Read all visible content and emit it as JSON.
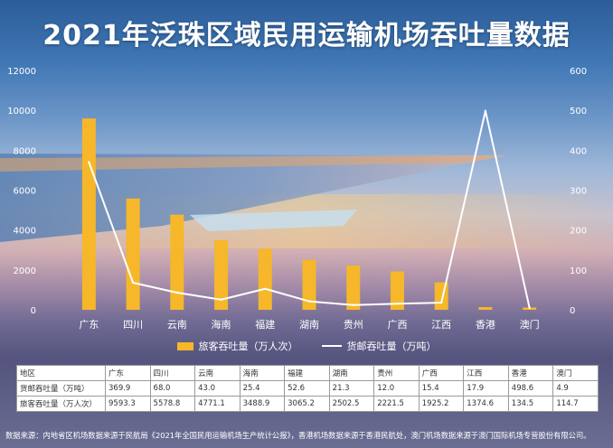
{
  "title": "2021年泛珠区域民用运输机场吞吐量数据",
  "legend": {
    "bar_label": "旅客吞吐量（万人次）",
    "line_label": "货邮吞吐量（万吨）"
  },
  "colors": {
    "bar": "#f6b72a",
    "line": "#ffffff"
  },
  "chart_data": {
    "type": "bar",
    "categories": [
      "广东",
      "四川",
      "云南",
      "海南",
      "福建",
      "湖南",
      "贵州",
      "广西",
      "江西",
      "香港",
      "澳门"
    ],
    "series": [
      {
        "name": "旅客吞吐量（万人次）",
        "type": "bar",
        "axis": "left",
        "values": [
          9593.3,
          5578.8,
          4771.1,
          3488.9,
          3065.2,
          2502.5,
          2221.5,
          1925.2,
          1374.6,
          134.5,
          114.7
        ]
      },
      {
        "name": "货邮吞吐量（万吨）",
        "type": "line",
        "axis": "right",
        "values": [
          369.9,
          68.0,
          43.0,
          25.4,
          52.6,
          21.3,
          12.0,
          15.4,
          17.9,
          498.6,
          4.9
        ]
      }
    ],
    "ylim_left": [
      0,
      12000
    ],
    "yticks_left": [
      0,
      2000,
      4000,
      6000,
      8000,
      10000,
      12000
    ],
    "ylim_right": [
      0,
      600
    ],
    "yticks_right": [
      0,
      100,
      200,
      300,
      400,
      500,
      600
    ],
    "legend_position": "bottom"
  },
  "table": {
    "header": [
      "地区",
      "广东",
      "四川",
      "云南",
      "海南",
      "福建",
      "湖南",
      "贵州",
      "广西",
      "江西",
      "香港",
      "澳门"
    ],
    "rows": [
      [
        "货邮吞吐量（万吨）",
        "369.9",
        "68.0",
        "43.0",
        "25.4",
        "52.6",
        "21.3",
        "12.0",
        "15.4",
        "17.9",
        "498.6",
        "4.9"
      ],
      [
        "旅客吞吐量（万人次）",
        "9593.3",
        "5578.8",
        "4771.1",
        "3488.9",
        "3065.2",
        "2502.5",
        "2221.5",
        "1925.2",
        "1374.6",
        "134.5",
        "114.7"
      ]
    ]
  },
  "source": "数据来源：内地省区机场数据来源于民航局《2021年全国民用运输机场生产统计公报》，香港机场数据来源于香港民航处，澳门机场数据来源于澳门国际机场专营股份有限公司。"
}
